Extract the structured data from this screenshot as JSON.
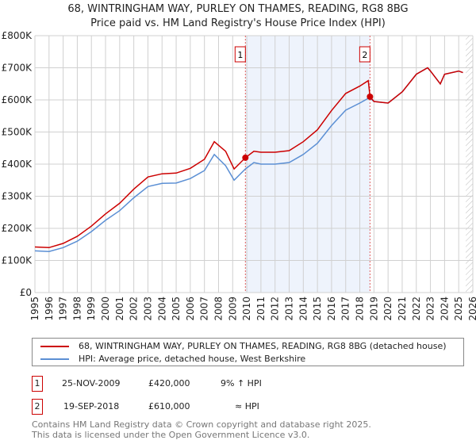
{
  "title": "68, WINTRINGHAM WAY, PURLEY ON THAMES, READING, RG8 8BG",
  "subtitle": "Price paid vs. HM Land Registry's House Price Index (HPI)",
  "chart_data": {
    "type": "line",
    "ylim": [
      0,
      800000
    ],
    "xlim": [
      1995,
      2026
    ],
    "y_ticks": [
      "£0",
      "£100K",
      "£200K",
      "£300K",
      "£400K",
      "£500K",
      "£600K",
      "£700K",
      "£800K"
    ],
    "x_ticks": [
      "1995",
      "1996",
      "1997",
      "1998",
      "1999",
      "2000",
      "2001",
      "2002",
      "2003",
      "2004",
      "2005",
      "2006",
      "2007",
      "2008",
      "2009",
      "2010",
      "2011",
      "2012",
      "2013",
      "2014",
      "2015",
      "2016",
      "2017",
      "2018",
      "2019",
      "2020",
      "2021",
      "2022",
      "2023",
      "2024",
      "2025",
      "2026"
    ],
    "series": [
      {
        "name": "68, WINTRINGHAM WAY, PURLEY ON THAMES, READING, RG8 8BG (detached house)",
        "color": "#cc0000",
        "x": [
          1995,
          1996,
          1997,
          1998,
          1999,
          2000,
          2001,
          2002,
          2003,
          2004,
          2005,
          2006,
          2007,
          2007.7,
          2008.5,
          2009.1,
          2009.9,
          2010.5,
          2011,
          2012,
          2013,
          2014,
          2015,
          2016,
          2017,
          2018,
          2018.6,
          2018.72,
          2019,
          2020,
          2021,
          2022,
          2022.8,
          2023,
          2023.7,
          2024,
          2025,
          2025.3
        ],
        "y": [
          142000,
          140000,
          153000,
          175000,
          207000,
          245000,
          278000,
          322000,
          360000,
          370000,
          372000,
          387000,
          415000,
          470000,
          440000,
          385000,
          420000,
          440000,
          437000,
          437000,
          442000,
          470000,
          507000,
          567000,
          620000,
          643000,
          660000,
          610000,
          595000,
          590000,
          625000,
          680000,
          700000,
          690000,
          650000,
          680000,
          690000,
          685000
        ]
      },
      {
        "name": "HPI: Average price, detached house, West Berkshire",
        "color": "#5b8fd4",
        "x": [
          1995,
          1996,
          1997,
          1998,
          1999,
          2000,
          2001,
          2002,
          2003,
          2004,
          2005,
          2006,
          2007,
          2007.7,
          2008.5,
          2009.1,
          2009.9,
          2010.5,
          2011,
          2012,
          2013,
          2014,
          2015,
          2016,
          2017,
          2018,
          2018.6,
          2018.72,
          2019,
          2020,
          2021,
          2022,
          2022.8,
          2023,
          2023.7,
          2024,
          2025,
          2025.3
        ],
        "y": [
          130000,
          128000,
          140000,
          160000,
          190000,
          225000,
          255000,
          295000,
          330000,
          340000,
          341000,
          355000,
          380000,
          430000,
          395000,
          350000,
          385000,
          405000,
          400000,
          400000,
          405000,
          430000,
          465000,
          520000,
          568000,
          590000,
          605000,
          605000,
          595000,
          590000,
          625000,
          680000,
          700000,
          690000,
          650000,
          680000,
          690000,
          685000
        ]
      }
    ],
    "annotations": [
      {
        "label": "1",
        "x": 2009.9,
        "y": 420000
      },
      {
        "label": "2",
        "x": 2018.72,
        "y": 610000
      }
    ],
    "shaded_range": [
      2009.9,
      2018.72
    ],
    "forecast_hatch_from": 2025.5
  },
  "legend": {
    "red": "68, WINTRINGHAM WAY, PURLEY ON THAMES, READING, RG8 8BG (detached house)",
    "blue": "HPI: Average price, detached house, West Berkshire"
  },
  "transactions": [
    {
      "n": "1",
      "date": "25-NOV-2009",
      "price": "£420,000",
      "rel": "9% ↑ HPI"
    },
    {
      "n": "2",
      "date": "19-SEP-2018",
      "price": "£610,000",
      "rel": "≈ HPI"
    }
  ],
  "footer": [
    "Contains HM Land Registry data © Crown copyright and database right 2025.",
    "This data is licensed under the Open Government Licence v3.0."
  ]
}
